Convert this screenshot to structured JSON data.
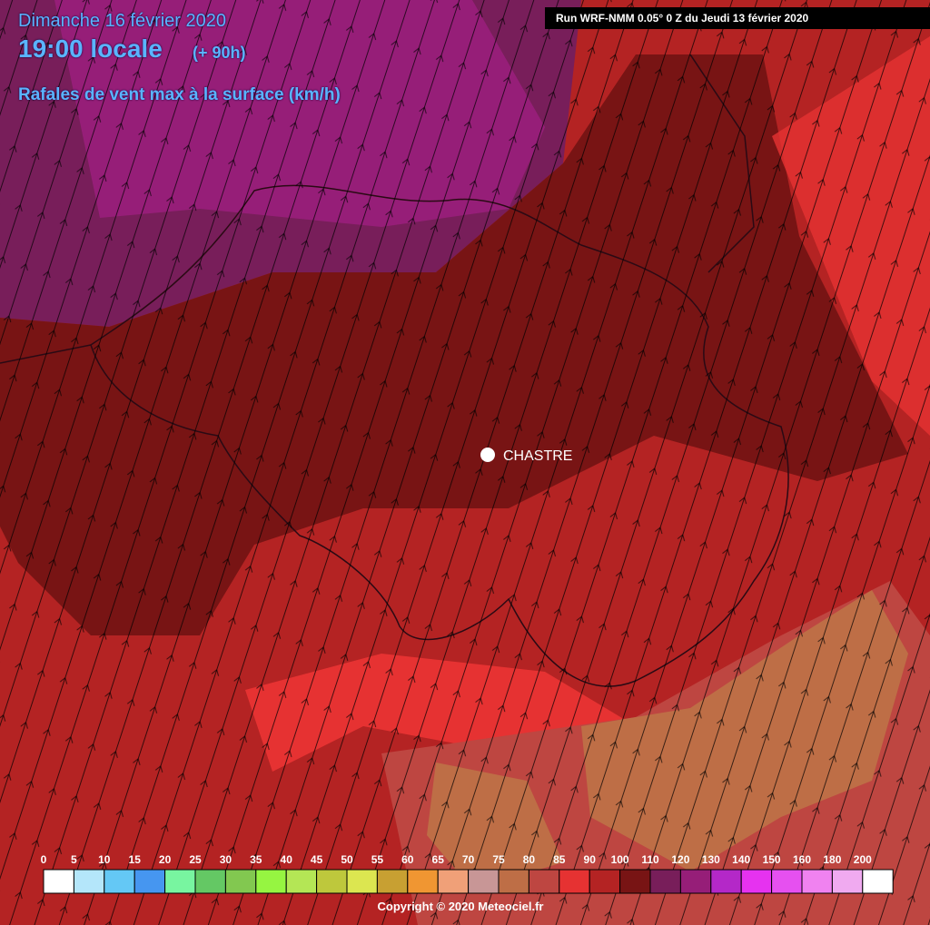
{
  "header": {
    "date": "Dimanche 16 février 2020",
    "time": "19:00 locale",
    "lead": "(+ 90h)",
    "parameter": "Rafales de vent max à la surface (km/h)",
    "run": "Run WRF-NMM 0.05° 0 Z du Jeudi 13 février 2020"
  },
  "map": {
    "location": "CHASTRE"
  },
  "legend": {
    "labels": [
      "0",
      "5",
      "10",
      "15",
      "20",
      "25",
      "30",
      "35",
      "40",
      "45",
      "50",
      "55",
      "60",
      "65",
      "70",
      "75",
      "80",
      "85",
      "90",
      "100",
      "110",
      "120",
      "130",
      "140",
      "150",
      "160",
      "180",
      "200"
    ],
    "colors": [
      "#ffffff",
      "#b4e6fa",
      "#64c8f5",
      "#4696f0",
      "#78f5a0",
      "#64c864",
      "#82c850",
      "#96f541",
      "#b4e655",
      "#bec83c",
      "#dce650",
      "#c8a032",
      "#f09632",
      "#f0a078",
      "#c89696",
      "#be6e46",
      "#be4641",
      "#e63232",
      "#b42323",
      "#781414",
      "#781e5a",
      "#961e78",
      "#b428c8",
      "#e632f0",
      "#e650f0",
      "#f082f0",
      "#f0aaf0",
      "#ffffff"
    ]
  },
  "footer": {
    "copyright": "Copyright © 2020 Meteociel.fr"
  }
}
